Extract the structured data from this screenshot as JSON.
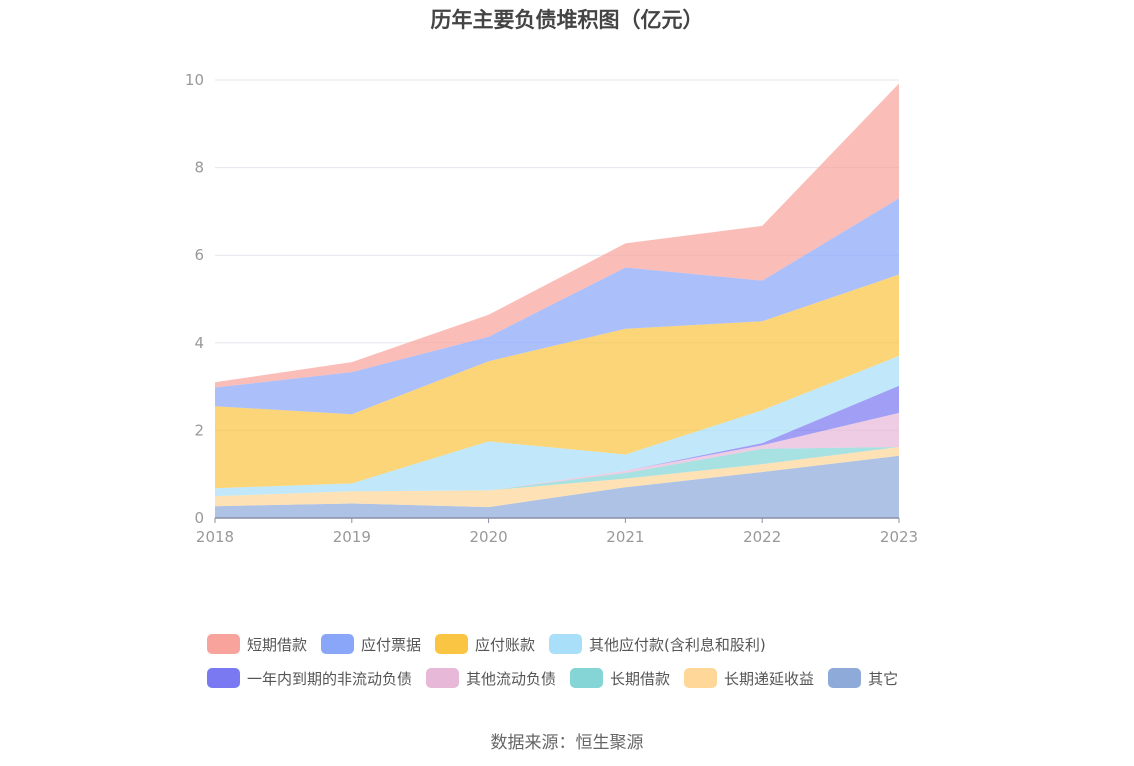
{
  "chart_data": {
    "type": "area",
    "stacked": true,
    "title": "历年主要负债堆积图（亿元）",
    "categories": [
      "2018",
      "2019",
      "2020",
      "2021",
      "2022",
      "2023"
    ],
    "ylim": [
      0,
      10
    ],
    "yticks": [
      "0",
      "2",
      "4",
      "6",
      "8",
      "10"
    ],
    "grid": true,
    "legend_position": "bottom",
    "series": [
      {
        "name": "其它",
        "color": "#8eaad9",
        "values": [
          0.27,
          0.33,
          0.25,
          0.7,
          1.05,
          1.42
        ]
      },
      {
        "name": "长期递延收益",
        "color": "#fed799",
        "values": [
          0.23,
          0.28,
          0.38,
          0.2,
          0.18,
          0.2
        ]
      },
      {
        "name": "长期借款",
        "color": "#86d5d6",
        "values": [
          0.0,
          0.0,
          0.0,
          0.13,
          0.35,
          0.0
        ]
      },
      {
        "name": "其他流动负债",
        "color": "#e7b8d8",
        "values": [
          0.0,
          0.0,
          0.0,
          0.05,
          0.08,
          0.78
        ]
      },
      {
        "name": "一年内到期的非流动负债",
        "color": "#7b79f1",
        "values": [
          0.0,
          0.0,
          0.0,
          0.0,
          0.05,
          0.62
        ]
      },
      {
        "name": "其他应付款(含利息和股利)",
        "color": "#a9dff8",
        "values": [
          0.18,
          0.18,
          1.12,
          0.37,
          0.75,
          0.68
        ]
      },
      {
        "name": "应付账款",
        "color": "#fac542",
        "values": [
          1.87,
          1.58,
          1.83,
          2.87,
          2.03,
          1.86
        ]
      },
      {
        "name": "应付票据",
        "color": "#8aa6f9",
        "values": [
          0.43,
          0.96,
          0.56,
          1.4,
          0.93,
          1.74
        ]
      },
      {
        "name": "短期借款",
        "color": "#f9a39d",
        "values": [
          0.12,
          0.23,
          0.5,
          0.55,
          1.25,
          2.62
        ]
      }
    ]
  },
  "legend": {
    "row1": [
      {
        "label": "短期借款",
        "color": "#f9a39d"
      },
      {
        "label": "应付票据",
        "color": "#8aa6f9"
      },
      {
        "label": "应付账款",
        "color": "#fac542"
      },
      {
        "label": "其他应付款(含利息和股利)",
        "color": "#a9dff8"
      }
    ],
    "row2": [
      {
        "label": "一年内到期的非流动负债",
        "color": "#7b79f1"
      },
      {
        "label": "其他流动负债",
        "color": "#e7b8d8"
      },
      {
        "label": "长期借款",
        "color": "#86d5d6"
      },
      {
        "label": "长期递延收益",
        "color": "#fed799"
      },
      {
        "label": "其它",
        "color": "#8eaad9"
      }
    ]
  },
  "source": "数据来源：恒生聚源"
}
